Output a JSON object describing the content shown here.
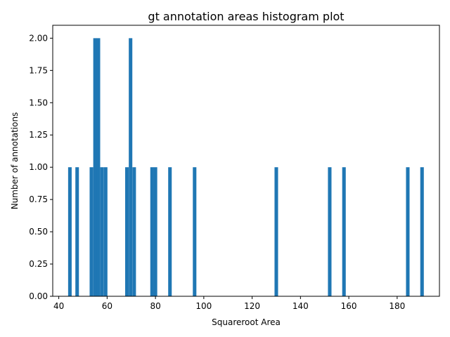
{
  "chart_data": {
    "type": "bar",
    "title": "gt annotation areas histogram plot",
    "xlabel": "Squareroot Area",
    "ylabel": "Number of annotations",
    "xlim": [
      37.5,
      197.5
    ],
    "ylim": [
      0,
      2.1
    ],
    "bin_width": 1.47,
    "color": "#1f77b4",
    "xticks": [
      40,
      60,
      80,
      100,
      120,
      140,
      160,
      180
    ],
    "yticks": [
      0.0,
      0.25,
      0.5,
      0.75,
      1.0,
      1.25,
      1.5,
      1.75,
      2.0
    ],
    "xtick_labels": [
      "40",
      "60",
      "80",
      "100",
      "120",
      "140",
      "160",
      "180"
    ],
    "ytick_labels": [
      "0.00",
      "0.25",
      "0.50",
      "0.75",
      "1.00",
      "1.25",
      "1.50",
      "1.75",
      "2.00"
    ],
    "bins": [
      {
        "x": 44.6,
        "count": 1
      },
      {
        "x": 47.6,
        "count": 1
      },
      {
        "x": 53.5,
        "count": 1
      },
      {
        "x": 55.0,
        "count": 2
      },
      {
        "x": 56.4,
        "count": 2
      },
      {
        "x": 57.9,
        "count": 1
      },
      {
        "x": 59.4,
        "count": 1
      },
      {
        "x": 68.2,
        "count": 1
      },
      {
        "x": 69.7,
        "count": 2
      },
      {
        "x": 71.2,
        "count": 1
      },
      {
        "x": 78.6,
        "count": 1
      },
      {
        "x": 80.0,
        "count": 1
      },
      {
        "x": 86.0,
        "count": 1
      },
      {
        "x": 96.2,
        "count": 1
      },
      {
        "x": 130.0,
        "count": 1
      },
      {
        "x": 152.1,
        "count": 1
      },
      {
        "x": 158.0,
        "count": 1
      },
      {
        "x": 184.4,
        "count": 1
      },
      {
        "x": 190.3,
        "count": 1
      }
    ]
  }
}
